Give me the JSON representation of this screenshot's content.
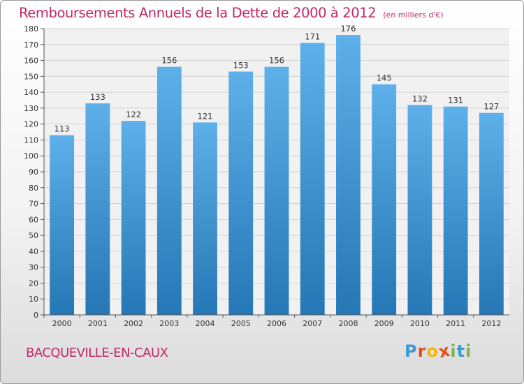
{
  "title": "Remboursements Annuels de la Dette de 2000 à 2012",
  "unit": "(en milliers d'€)",
  "city": "BACQUEVILLE-EN-CAUX",
  "logo": {
    "letters": [
      "P",
      "r",
      "o",
      "x",
      "i",
      "t",
      "i"
    ],
    "colors": [
      "#3a9ad9",
      "#e84e1b",
      "#f2b705",
      "#e84e1b",
      "#7ab648",
      "#3a9ad9",
      "#7ab648"
    ]
  },
  "colors": {
    "bar_top": "#5eb0ea",
    "bar_bottom": "#2577b5",
    "title": "#c0286a"
  },
  "chart_data": {
    "type": "bar",
    "title": "Remboursements Annuels de la Dette de 2000 à 2012",
    "xlabel": "",
    "ylabel": "",
    "ylim": [
      0,
      180
    ],
    "ytick_step": 10,
    "grid": true,
    "categories": [
      "2000",
      "2001",
      "2002",
      "2003",
      "2004",
      "2005",
      "2006",
      "2007",
      "2008",
      "2009",
      "2010",
      "2011",
      "2012"
    ],
    "values": [
      113,
      133,
      122,
      156,
      121,
      153,
      156,
      171,
      176,
      145,
      132,
      131,
      127
    ]
  }
}
